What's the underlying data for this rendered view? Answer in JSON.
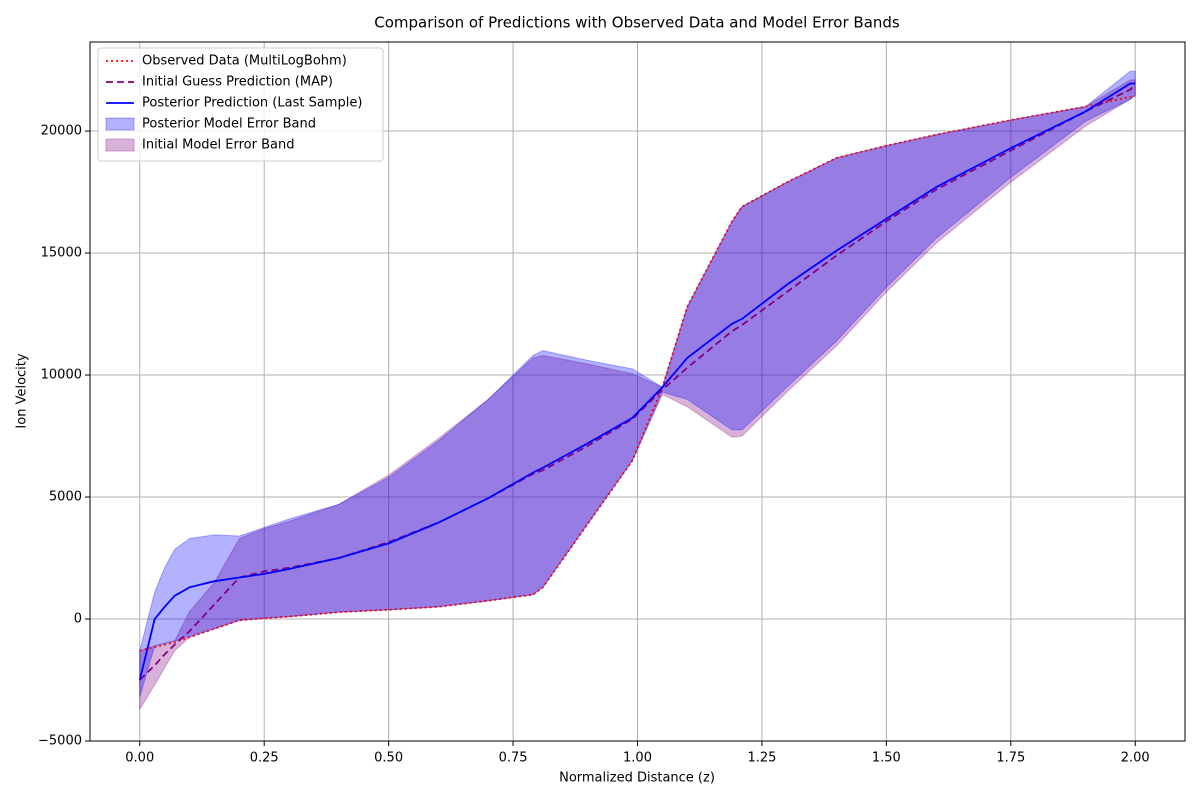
{
  "chart_data": {
    "type": "line",
    "title": "Comparison of Predictions with Observed Data and Model Error Bands",
    "xlabel": "Normalized Distance (z)",
    "ylabel": "Ion Velocity",
    "x": [
      0,
      0.03,
      0.05,
      0.07,
      0.1,
      0.15,
      0.2,
      0.25,
      0.3,
      0.4,
      0.5,
      0.6,
      0.7,
      0.79,
      0.81,
      0.9,
      0.99,
      1.05,
      1.1,
      1.19,
      1.21,
      1.3,
      1.4,
      1.5,
      1.6,
      1.75,
      1.9,
      1.99,
      2.0
    ],
    "series": [
      {
        "name": "Observed Data (MultiLogBohm)",
        "color": "#ff0000",
        "linestyle": "dotted",
        "values": [
          -1300,
          -1150,
          -1050,
          -950,
          -750,
          -400,
          -50,
          30,
          100,
          280,
          380,
          500,
          750,
          1000,
          1300,
          3900,
          6500,
          9500,
          12800,
          16300,
          16900,
          17900,
          18900,
          19400,
          19850,
          20450,
          21000,
          21400,
          21450
        ]
      },
      {
        "name": "Initial Guess Prediction (MAP)",
        "color": "#800080",
        "linestyle": "dashed",
        "values": [
          -2500,
          -1900,
          -1450,
          -1050,
          -500,
          600,
          1700,
          1950,
          2100,
          2500,
          3150,
          3950,
          4950,
          5950,
          6100,
          7100,
          8200,
          9400,
          10300,
          11800,
          12050,
          13400,
          14900,
          16300,
          17600,
          19200,
          20800,
          21700,
          21900
        ]
      },
      {
        "name": "Posterior Prediction (Last Sample)",
        "color": "#0000ff",
        "linestyle": "solid",
        "values": [
          -2500,
          0,
          500,
          950,
          1300,
          1550,
          1700,
          1850,
          2050,
          2500,
          3100,
          3950,
          4950,
          6000,
          6200,
          7200,
          8250,
          9500,
          10700,
          12100,
          12300,
          13700,
          15100,
          16400,
          17700,
          19300,
          20800,
          21950,
          21950
        ]
      }
    ],
    "bands": [
      {
        "name": "Posterior Model Error Band",
        "color": "#0000ff",
        "upper": [
          -1300,
          1100,
          2100,
          2850,
          3300,
          3450,
          3400,
          3750,
          4100,
          4700,
          5800,
          7300,
          9000,
          10800,
          11000,
          10600,
          10250,
          9500,
          12800,
          16300,
          16900,
          17900,
          18900,
          19400,
          19850,
          20450,
          21000,
          22450,
          22450
        ],
        "lower": [
          -3200,
          -1100,
          -1000,
          -900,
          -700,
          -400,
          -50,
          30,
          100,
          280,
          380,
          500,
          750,
          1000,
          1300,
          3900,
          6500,
          9300,
          9000,
          7750,
          7750,
          9500,
          11400,
          13600,
          15600,
          18100,
          20400,
          21300,
          21450
        ]
      },
      {
        "name": "Initial Model Error Band",
        "color": "#800080",
        "upper": [
          -1300,
          -1100,
          -1000,
          -900,
          300,
          1500,
          3300,
          3700,
          4000,
          4700,
          5900,
          7400,
          9000,
          10700,
          10800,
          10450,
          10050,
          9500,
          12800,
          16300,
          16900,
          17900,
          18900,
          19400,
          19850,
          20450,
          21000,
          22100,
          22100
        ],
        "lower": [
          -3700,
          -2700,
          -2000,
          -1300,
          -750,
          -400,
          -50,
          30,
          100,
          280,
          380,
          500,
          750,
          1000,
          1300,
          3900,
          6500,
          9200,
          8700,
          7450,
          7500,
          9300,
          11200,
          13400,
          15400,
          17900,
          20200,
          21300,
          21450
        ]
      }
    ],
    "xlim": [
      -0.1,
      2.1
    ],
    "ylim": [
      -5000,
      23650
    ],
    "xticks": [
      {
        "value": 0,
        "label": "0.00"
      },
      {
        "value": 0.25,
        "label": "0.25"
      },
      {
        "value": 0.5,
        "label": "0.50"
      },
      {
        "value": 0.75,
        "label": "0.75"
      },
      {
        "value": 1,
        "label": "1.00"
      },
      {
        "value": 1.25,
        "label": "1.25"
      },
      {
        "value": 1.5,
        "label": "1.50"
      },
      {
        "value": 1.75,
        "label": "1.75"
      },
      {
        "value": 2,
        "label": "2.00"
      }
    ],
    "yticks": [
      {
        "value": -5000,
        "label": "−5000"
      },
      0,
      5000,
      10000,
      15000,
      20000
    ],
    "grid": true,
    "legend": "upper-left"
  }
}
